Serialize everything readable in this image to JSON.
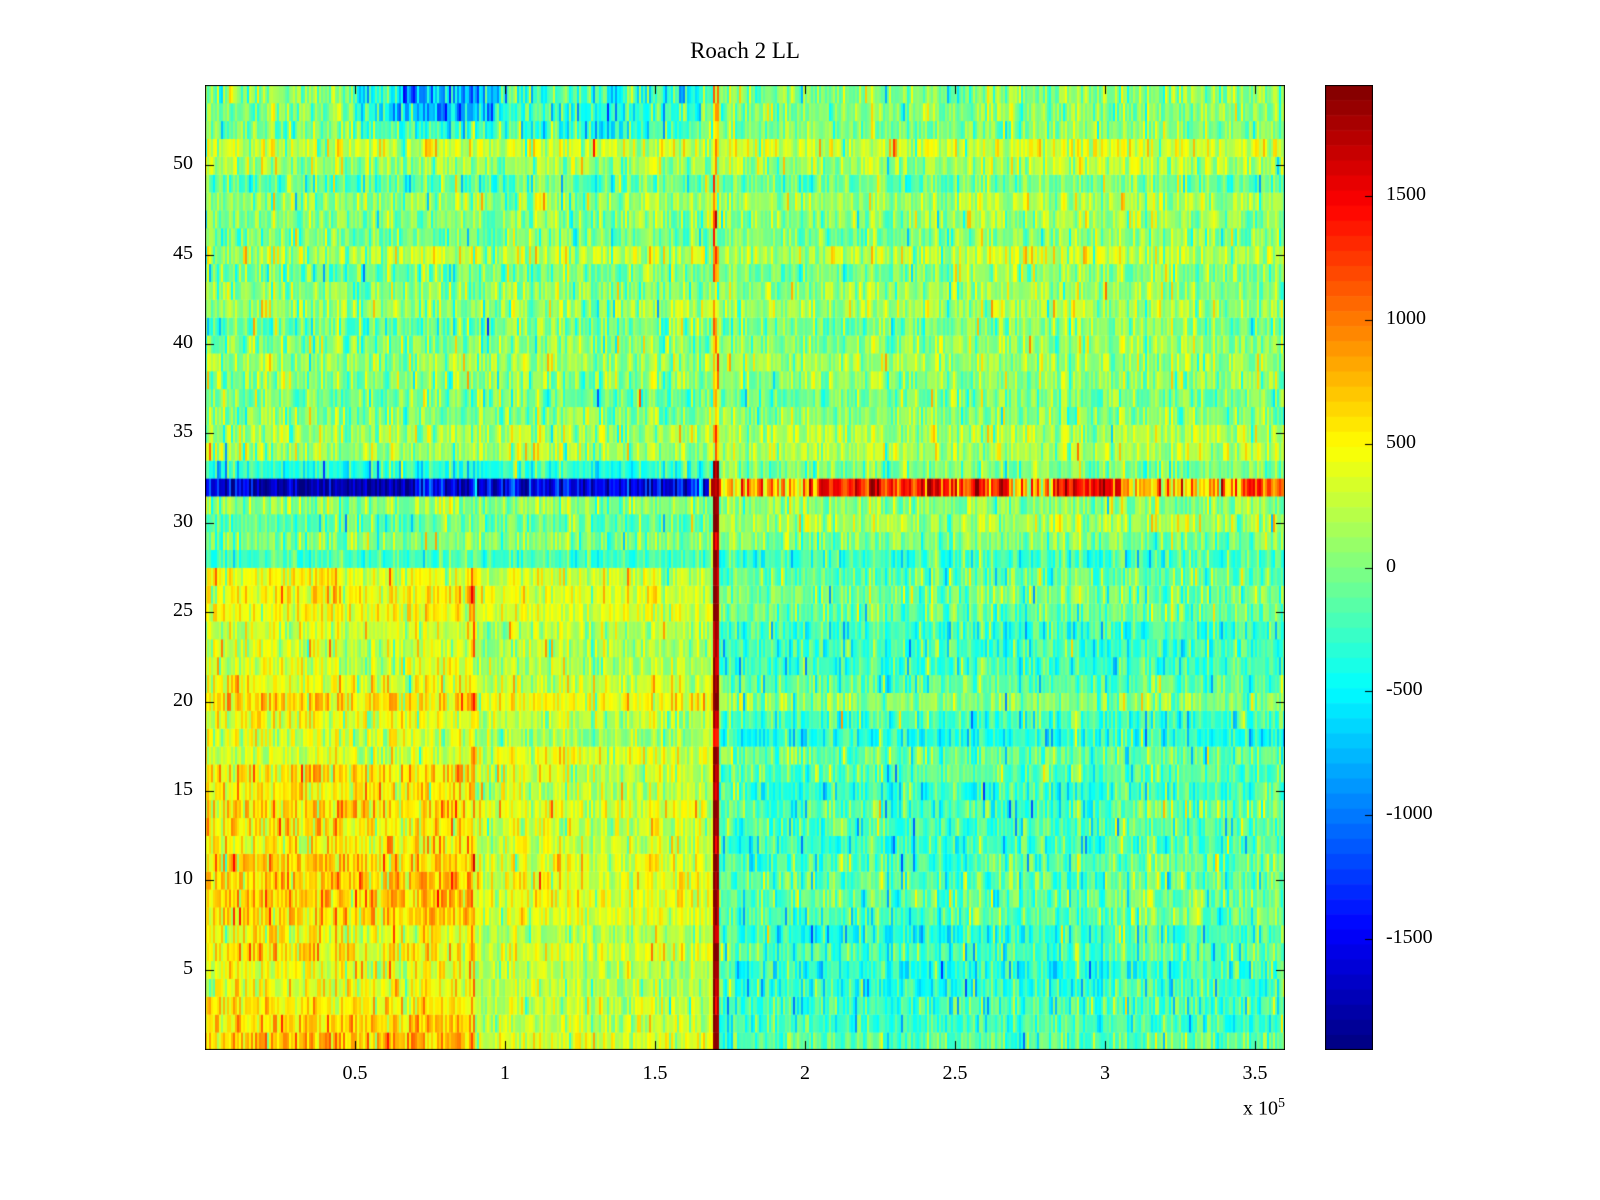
{
  "chart_data": {
    "type": "heatmap",
    "title": "Roach 2 LL",
    "colormap": "jet",
    "clim": [
      -1950,
      1950
    ],
    "x_range": [
      0,
      360000
    ],
    "x_ticks": [
      50000,
      100000,
      150000,
      200000,
      250000,
      300000,
      350000
    ],
    "x_tick_labels": [
      "0.5",
      "1",
      "1.5",
      "2",
      "2.5",
      "3",
      "3.5"
    ],
    "x_exponent": {
      "prefix": "x 10",
      "exp": "5"
    },
    "y_range": [
      0.5,
      54.5
    ],
    "y_ticks": [
      5,
      10,
      15,
      20,
      25,
      30,
      35,
      40,
      45,
      50
    ],
    "y_tick_labels": [
      "5",
      "10",
      "15",
      "20",
      "25",
      "30",
      "35",
      "40",
      "45",
      "50"
    ],
    "colorbar_ticks": [
      1500,
      1000,
      500,
      0,
      -500,
      -1000,
      -1500
    ],
    "colorbar_tick_labels": [
      "1500",
      "1000",
      "500",
      "0",
      "-500",
      "-1000",
      "-1500"
    ],
    "legend_position": "right-colorbar",
    "grid": {
      "rows": 54,
      "cols": 540,
      "seed": 1337,
      "row_variation": 100,
      "col_variation": 70,
      "spike_prob": 0.035,
      "spike_scale": 2.2
    },
    "regions": [
      {
        "r0": 1,
        "r1": 54,
        "x0": 0,
        "x1": 360000,
        "mean": 70,
        "sd": 190
      },
      {
        "r0": 33,
        "r1": 54,
        "x0": 0,
        "x1": 170000,
        "mean": 50,
        "sd": 225
      },
      {
        "r0": 52,
        "r1": 54,
        "x0": 50000,
        "x1": 165000,
        "mean": -280,
        "sd": 280
      },
      {
        "r0": 53,
        "r1": 54,
        "x0": 62000,
        "x1": 96000,
        "mean": -700,
        "sd": 300
      },
      {
        "r0": 1,
        "r1": 27,
        "x0": 0,
        "x1": 90000,
        "mean": 510,
        "sd": 210
      },
      {
        "r0": 20,
        "r1": 27,
        "x0": 0,
        "x1": 90000,
        "mean": 420,
        "sd": 195
      },
      {
        "r0": 1,
        "r1": 3,
        "x0": 0,
        "x1": 90000,
        "mean": 660,
        "sd": 200
      },
      {
        "r0": 8,
        "r1": 18,
        "x0": 0,
        "x1": 90000,
        "mean": 580,
        "sd": 235
      },
      {
        "r0": 17,
        "r1": 17,
        "x0": 0,
        "x1": 90000,
        "mean": 250,
        "sd": 180
      },
      {
        "r0": 1,
        "r1": 27,
        "x0": 87500,
        "x1": 90200,
        "mean": 760,
        "sd": 250
      },
      {
        "r0": 1,
        "r1": 27,
        "x0": 90200,
        "x1": 170000,
        "mean": 290,
        "sd": 180
      },
      {
        "r0": 1,
        "r1": 27,
        "x0": 170000,
        "x1": 360000,
        "mean": -130,
        "sd": 210
      },
      {
        "r0": 4,
        "r1": 15,
        "x0": 175000,
        "x1": 300000,
        "mean": -250,
        "sd": 220
      },
      {
        "r0": 1,
        "r1": 2,
        "x0": 170000,
        "x1": 360000,
        "mean": -210,
        "sd": 200
      },
      {
        "r0": 28,
        "r1": 28,
        "x0": 0,
        "x1": 360000,
        "mean": -380,
        "sd": 170
      },
      {
        "r0": 30,
        "r1": 30,
        "x0": 0,
        "x1": 170000,
        "mean": -220,
        "sd": 180
      },
      {
        "r0": 33,
        "r1": 33,
        "x0": 0,
        "x1": 170000,
        "mean": -260,
        "sd": 220
      },
      {
        "r0": 40,
        "r1": 50,
        "x0": 250000,
        "x1": 330000,
        "mean": 150,
        "sd": 200
      },
      {
        "r0": 32,
        "r1": 32,
        "x0": 0,
        "x1": 168000,
        "mean": -1450,
        "sd": 300
      },
      {
        "r0": 32,
        "r1": 32,
        "x0": 18000,
        "x1": 70000,
        "mean": -1720,
        "sd": 170
      },
      {
        "r0": 32,
        "r1": 32,
        "x0": 168000,
        "x1": 360000,
        "mean": 850,
        "sd": 380
      },
      {
        "r0": 32,
        "r1": 32,
        "x0": 205000,
        "x1": 268000,
        "mean": 1480,
        "sd": 280
      },
      {
        "r0": 32,
        "r1": 32,
        "x0": 283000,
        "x1": 305000,
        "mean": 1520,
        "sd": 260
      },
      {
        "r0": 32,
        "r1": 32,
        "x0": 345000,
        "x1": 360000,
        "mean": 1250,
        "sd": 300
      },
      {
        "r0": 34,
        "r1": 54,
        "x0": 169300,
        "x1": 171100,
        "mean": 700,
        "sd": 350
      },
      {
        "r0": 1,
        "r1": 33,
        "x0": 169300,
        "x1": 171100,
        "mean": 1850,
        "sd": 120
      }
    ]
  }
}
